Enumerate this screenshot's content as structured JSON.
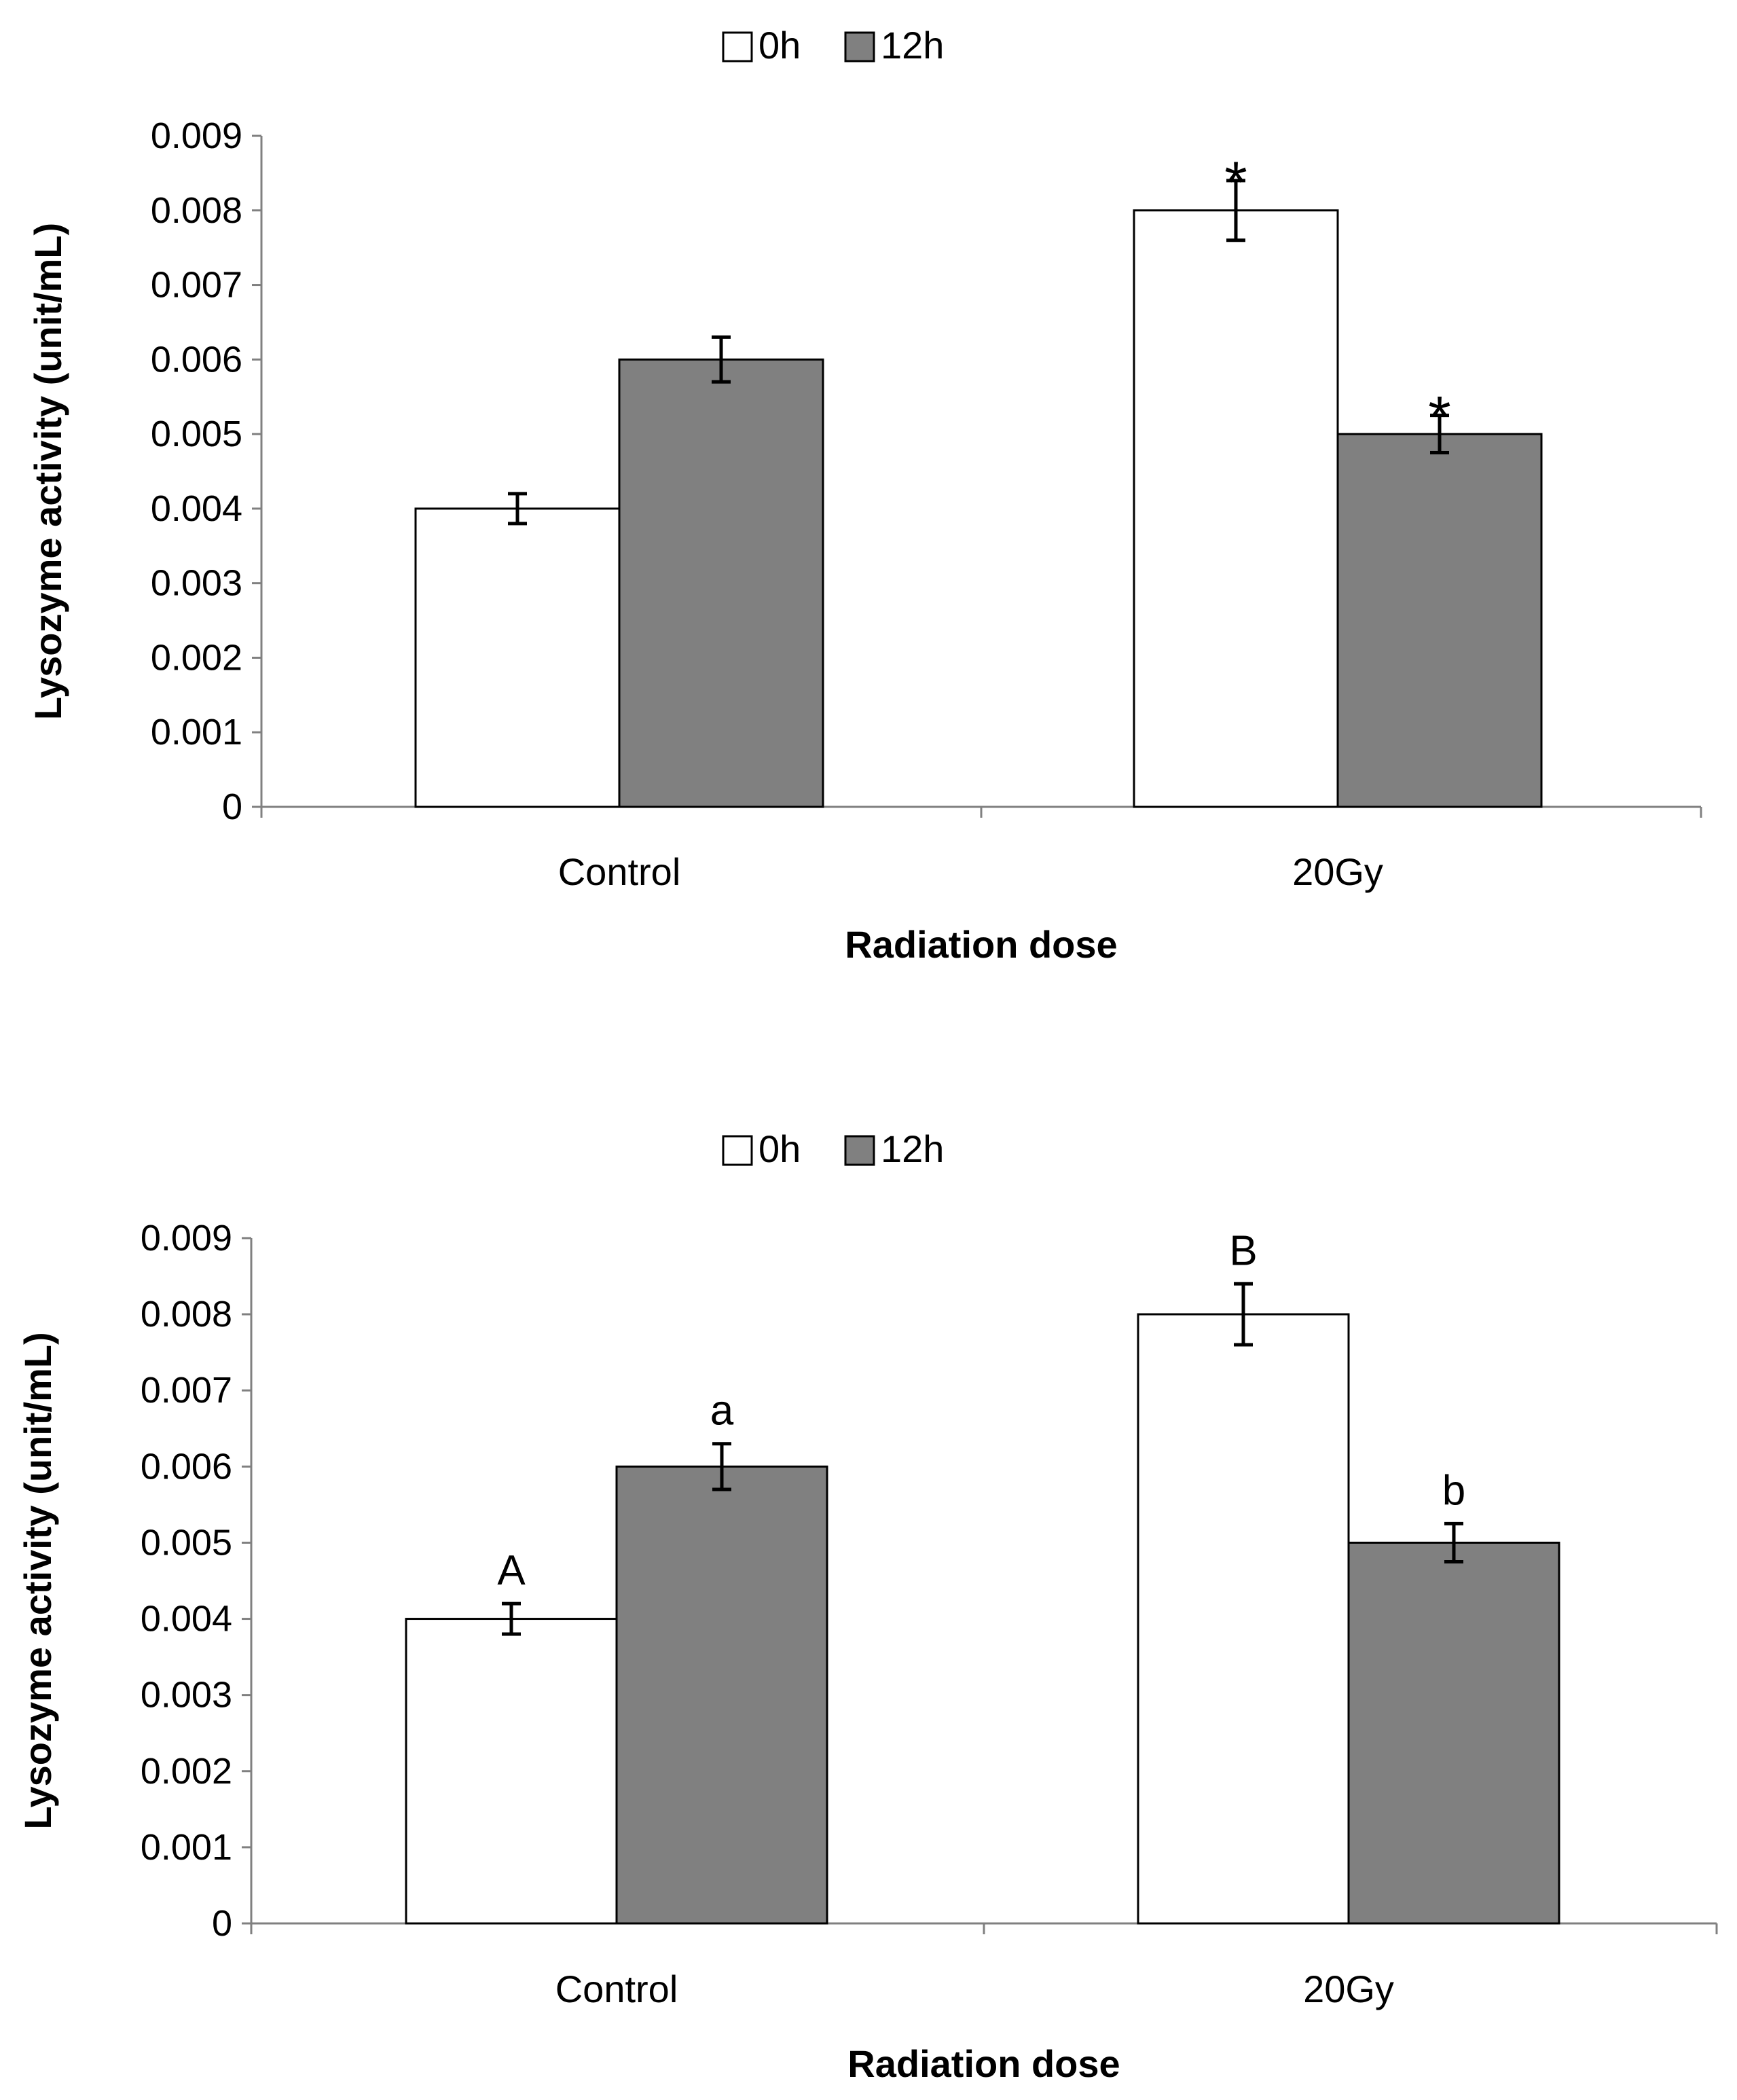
{
  "chart_data": [
    {
      "type": "bar",
      "title": "",
      "xlabel": "Radiation dose",
      "ylabel": "Lysozyme activity (unit/mL)",
      "ylim": [
        0,
        0.009
      ],
      "yticks": [
        "0",
        "0.001",
        "0.002",
        "0.003",
        "0.004",
        "0.005",
        "0.006",
        "0.007",
        "0.008",
        "0.009"
      ],
      "categories": [
        "Control",
        "20Gy"
      ],
      "legend": {
        "position": "top-center"
      },
      "series": [
        {
          "name": "0h",
          "color": "#ffffff",
          "values": [
            0.004,
            0.008
          ],
          "errors": [
            0.0002,
            0.0004
          ],
          "annotations": [
            "",
            "*"
          ]
        },
        {
          "name": "12h",
          "color": "#808080",
          "values": [
            0.006,
            0.005
          ],
          "errors": [
            0.0003,
            0.00025
          ],
          "annotations": [
            "",
            "*"
          ]
        }
      ]
    },
    {
      "type": "bar",
      "title": "",
      "xlabel": "Radiation dose",
      "ylabel": "Lysozyme activity (unit/mL)",
      "ylim": [
        0,
        0.009
      ],
      "yticks": [
        "0",
        "0.001",
        "0.002",
        "0.003",
        "0.004",
        "0.005",
        "0.006",
        "0.007",
        "0.008",
        "0.009"
      ],
      "categories": [
        "Control",
        "20Gy"
      ],
      "legend": {
        "position": "top-center"
      },
      "series": [
        {
          "name": "0h",
          "color": "#ffffff",
          "values": [
            0.004,
            0.008
          ],
          "errors": [
            0.0002,
            0.0004
          ],
          "annotations": [
            "A",
            "B"
          ]
        },
        {
          "name": "12h",
          "color": "#808080",
          "values": [
            0.006,
            0.005
          ],
          "errors": [
            0.0003,
            0.00025
          ],
          "annotations": [
            "a",
            "b"
          ]
        }
      ]
    }
  ]
}
